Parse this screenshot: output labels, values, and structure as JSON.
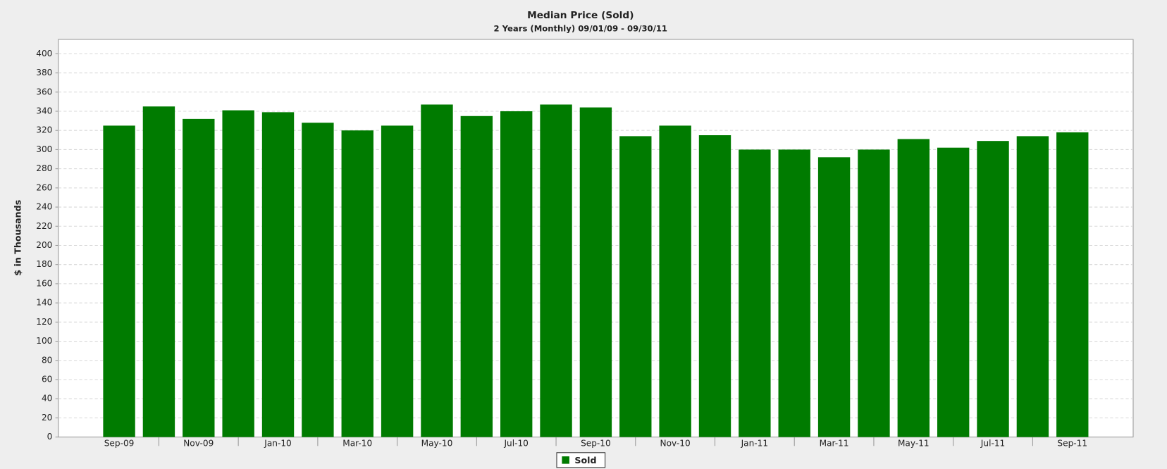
{
  "chart_data": {
    "type": "bar",
    "title": "Median Price (Sold)",
    "subtitle": "2 Years (Monthly) 09/01/09 - 09/30/11",
    "y_label": "$ in Thousands",
    "categories": [
      "Sep-09",
      null,
      "Nov-09",
      null,
      "Jan-10",
      null,
      "Mar-10",
      null,
      "May-10",
      null,
      "Jul-10",
      null,
      "Sep-10",
      null,
      "Nov-10",
      null,
      "Jan-11",
      null,
      "Mar-11",
      null,
      "May-11",
      null,
      "Jul-11",
      null,
      "Sep-11"
    ],
    "series": [
      {
        "name": "Sold",
        "color": "#007b00",
        "values": [
          325,
          345,
          332,
          341,
          339,
          328,
          320,
          325,
          347,
          335,
          340,
          347,
          344,
          314,
          325,
          315,
          300,
          300,
          292,
          300,
          311,
          302,
          309,
          314,
          318
        ]
      }
    ],
    "ylim": [
      0,
      415
    ],
    "yticks": [
      0,
      20,
      40,
      60,
      80,
      100,
      120,
      140,
      160,
      180,
      200,
      220,
      240,
      260,
      280,
      300,
      320,
      340,
      360,
      380,
      400
    ],
    "grid": true,
    "legend": "bottom"
  }
}
